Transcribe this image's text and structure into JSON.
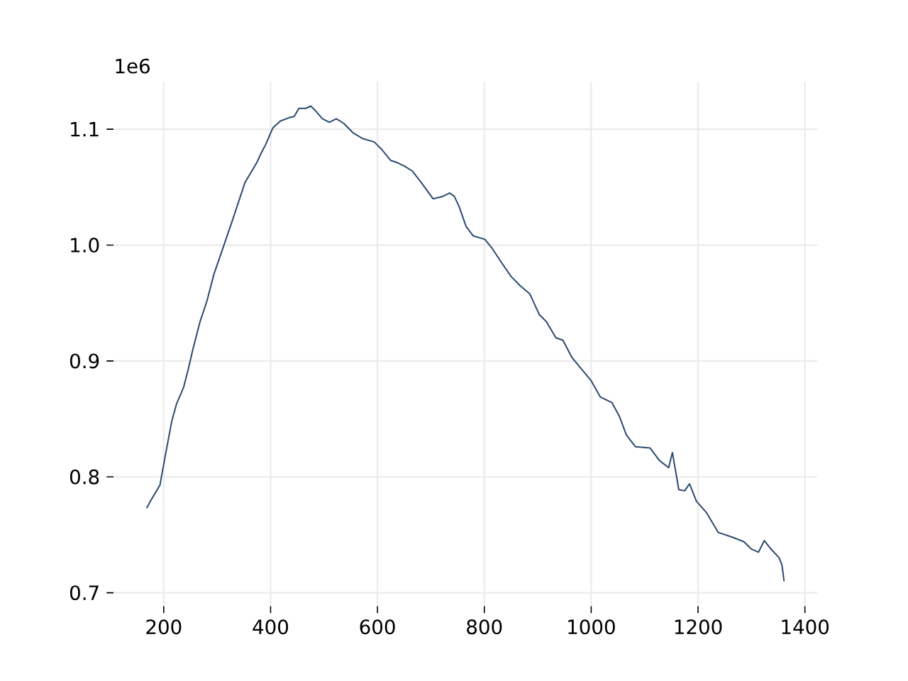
{
  "chart_data": {
    "type": "line",
    "annotations": [
      "1e6"
    ],
    "color": "#2b4a70",
    "line_style": "solid",
    "grid": true,
    "x": [
      168,
      175,
      193,
      202,
      215,
      224,
      237,
      246,
      254,
      268,
      281,
      294,
      312,
      329,
      352,
      365,
      374,
      382,
      391,
      404,
      418,
      435,
      444,
      453,
      466,
      475,
      484,
      497,
      510,
      523,
      537,
      554,
      572,
      594,
      607,
      625,
      638,
      651,
      665,
      682,
      704,
      722,
      735,
      744,
      753,
      766,
      779,
      801,
      815,
      832,
      850,
      867,
      885,
      903,
      916,
      934,
      947,
      964,
      982,
      1000,
      1017,
      1039,
      1053,
      1066,
      1083,
      1110,
      1128,
      1145,
      1152,
      1164,
      1175,
      1184,
      1197,
      1216,
      1238,
      1264,
      1286,
      1299,
      1313,
      1324,
      1336,
      1352,
      1357,
      1361
    ],
    "values": [
      0.773,
      0.779,
      0.793,
      0.816,
      0.848,
      0.863,
      0.877,
      0.893,
      0.909,
      0.934,
      0.952,
      0.975,
      0.999,
      1.022,
      1.054,
      1.064,
      1.071,
      1.079,
      1.087,
      1.101,
      1.107,
      1.11,
      1.111,
      1.118,
      1.118,
      1.12,
      1.116,
      1.109,
      1.106,
      1.109,
      1.105,
      1.097,
      1.092,
      1.089,
      1.083,
      1.073,
      1.071,
      1.068,
      1.064,
      1.054,
      1.04,
      1.042,
      1.045,
      1.042,
      1.033,
      1.016,
      1.008,
      1.005,
      0.997,
      0.985,
      0.973,
      0.965,
      0.958,
      0.94,
      0.934,
      0.92,
      0.918,
      0.903,
      0.893,
      0.883,
      0.869,
      0.864,
      0.852,
      0.836,
      0.826,
      0.825,
      0.814,
      0.808,
      0.821,
      0.789,
      0.788,
      0.794,
      0.779,
      0.769,
      0.752,
      0.748,
      0.744,
      0.738,
      0.735,
      0.745,
      0.738,
      0.73,
      0.724,
      0.71
    ],
    "xlim": [
      106,
      1423
    ],
    "ylim": [
      0.6885,
      1.141
    ],
    "xticks": [
      200,
      400,
      600,
      800,
      1000,
      1200,
      1400
    ],
    "yticks": [
      0.7,
      0.8,
      0.9,
      {
        "value": 1,
        "label": "1.0"
      },
      1.1
    ]
  }
}
